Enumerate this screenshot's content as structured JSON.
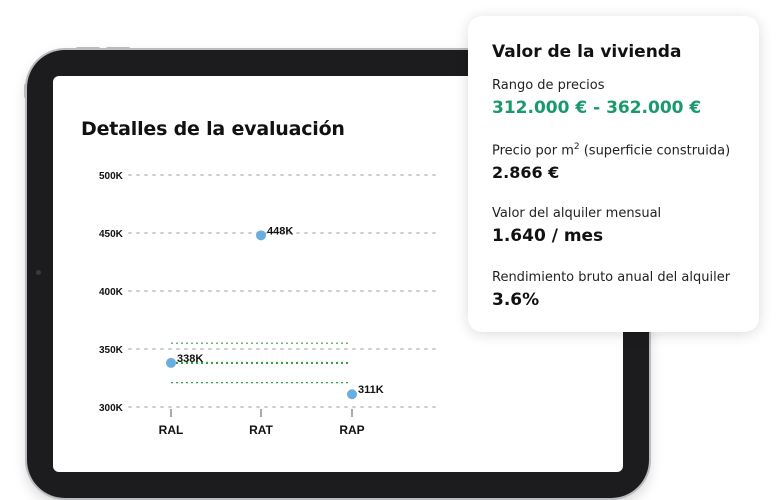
{
  "evaluation": {
    "title": "Detalles de la evaluación"
  },
  "chart_data": {
    "type": "scatter",
    "categories": [
      "RAL",
      "RAT",
      "RAP"
    ],
    "y_tick_labels": [
      "300K",
      "350K",
      "400K",
      "450K",
      "500K"
    ],
    "y_ticks": [
      300,
      350,
      400,
      450,
      500
    ],
    "ylim": [
      300,
      500
    ],
    "points": [
      {
        "category": "RAL",
        "value": 338,
        "label": "338K"
      },
      {
        "category": "RAT",
        "value": 448,
        "label": "448K"
      },
      {
        "category": "RAP",
        "value": 311,
        "label": "311K"
      }
    ],
    "reference_band": {
      "low": 321,
      "mid": 338,
      "high": 355
    },
    "grid": true,
    "colors": {
      "point": "#6aaee0",
      "band": "#33a34a",
      "grid": "#cfcfcf"
    }
  },
  "card": {
    "title": "Valor de la vivienda",
    "price_range_label": "Rango de precios",
    "price_range_value": "312.000 € - 362.000 €",
    "price_m2_label_prefix": "Precio por m",
    "price_m2_label_sup": "2",
    "price_m2_label_suffix": " (superficie construida)",
    "price_m2_value": "2.866 €",
    "rent_label": "Valor del alquiler mensual",
    "rent_value": "1.640 / mes",
    "yield_label": "Rendimiento bruto anual del alquiler",
    "yield_value": "3.6%",
    "accent_color": "#1a9a6c"
  }
}
